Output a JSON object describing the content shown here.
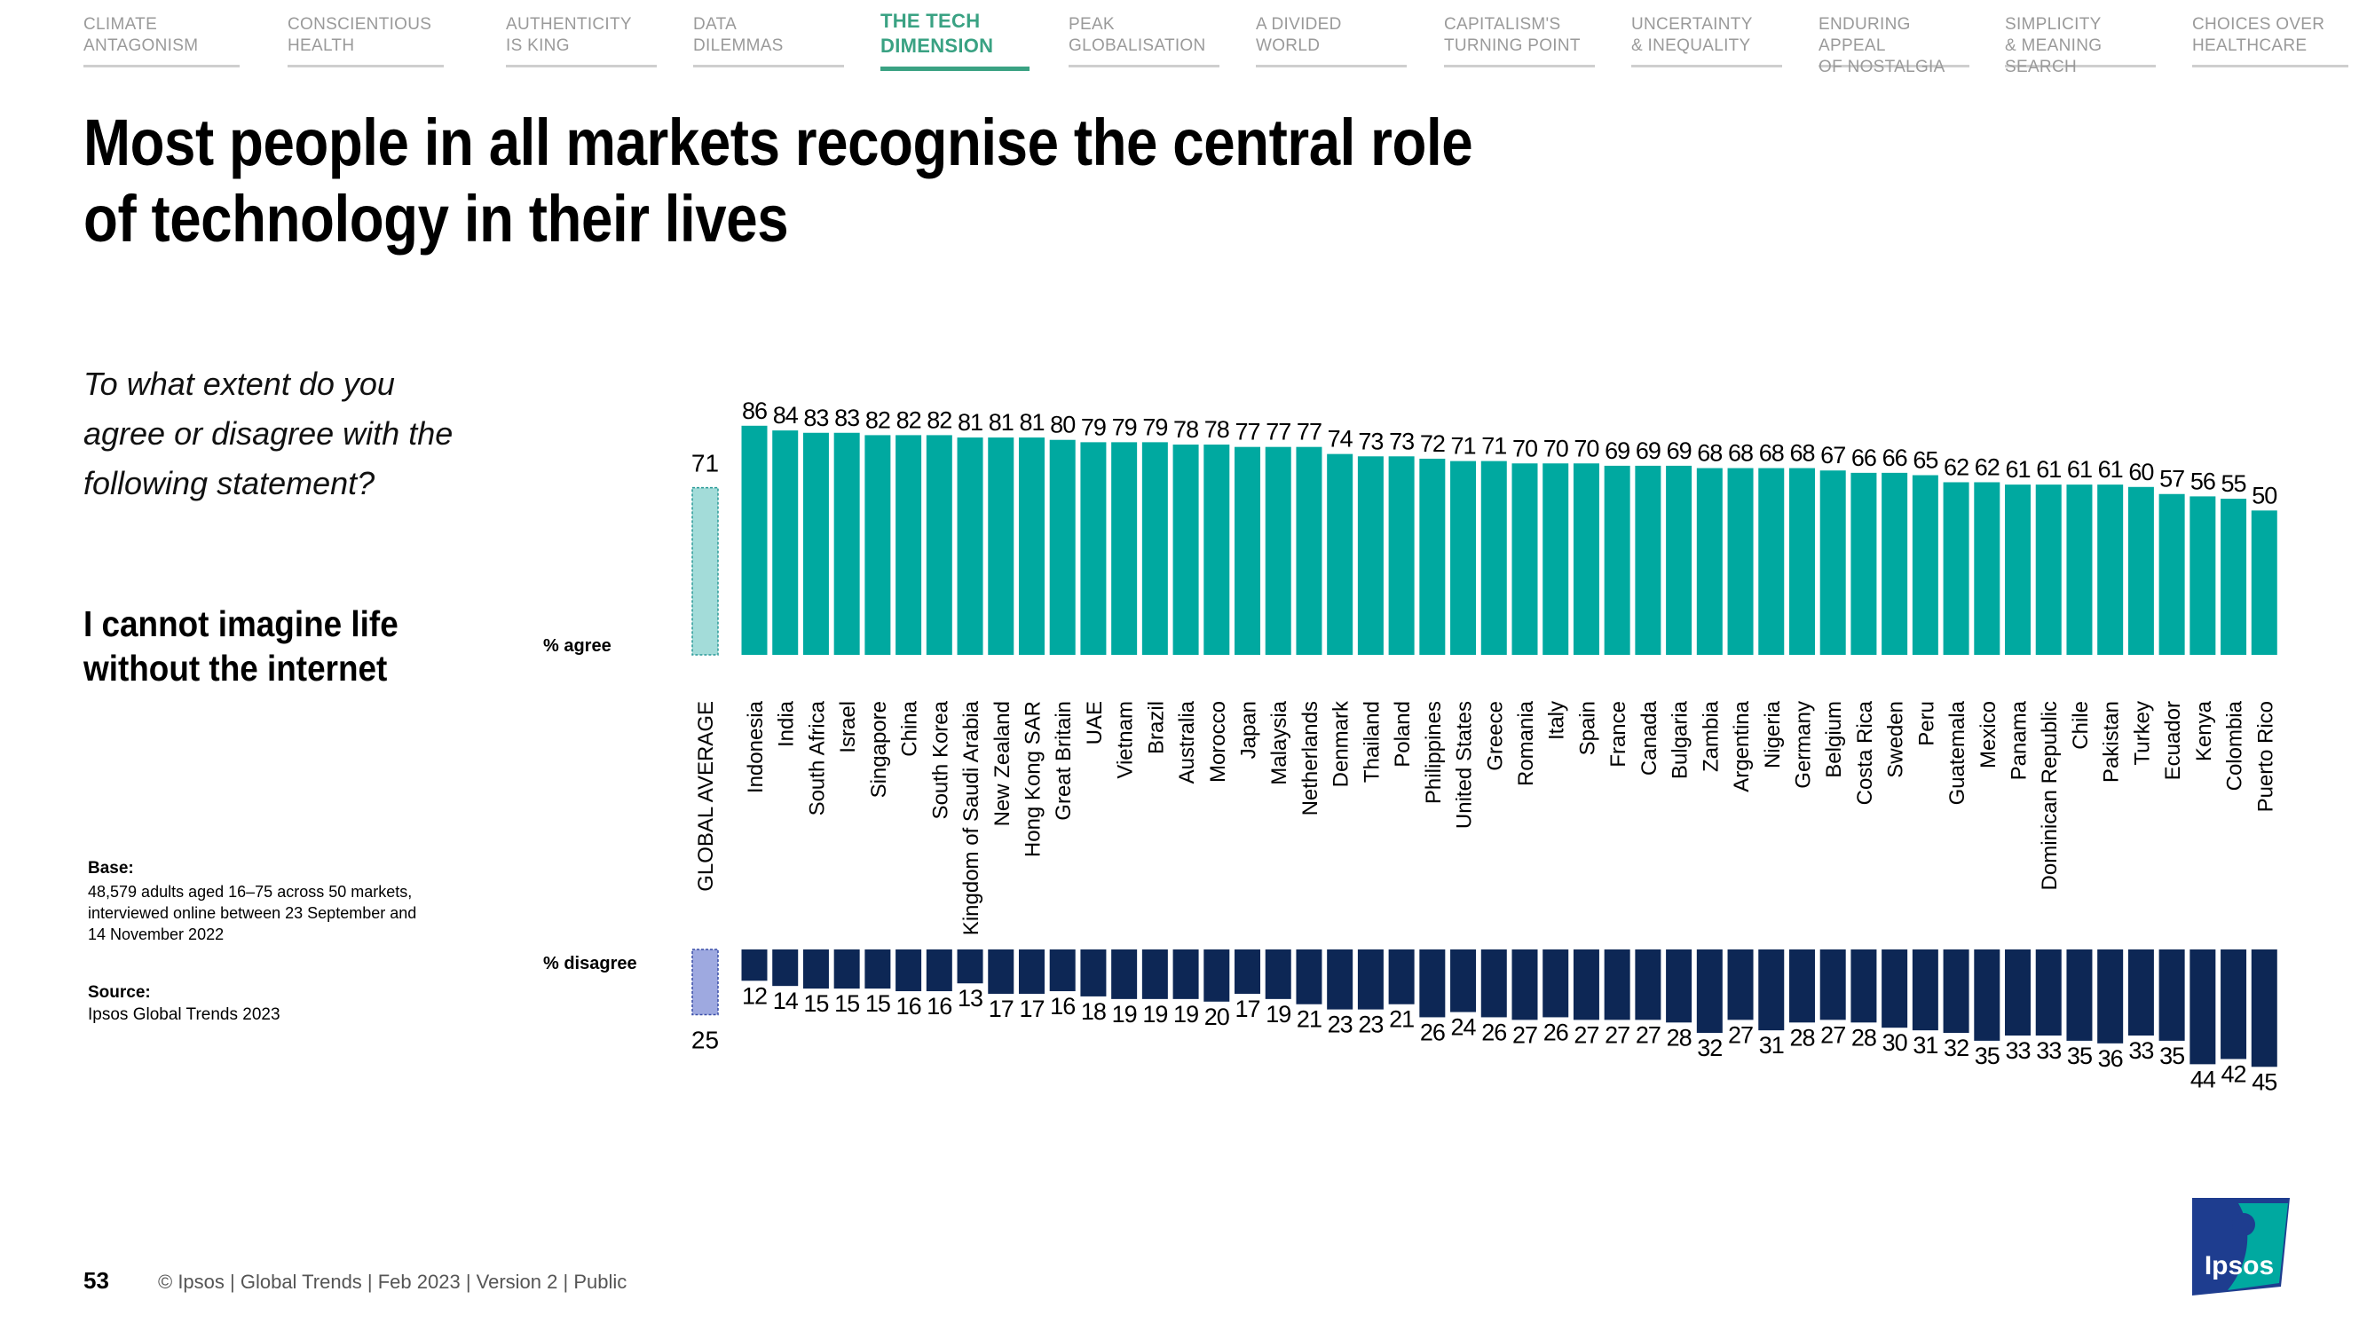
{
  "nav": [
    {
      "line1": "CLIMATE",
      "line2": "ANTAGONISM"
    },
    {
      "line1": "CONSCIENTIOUS",
      "line2": "HEALTH"
    },
    {
      "line1": "AUTHENTICITY",
      "line2": "IS KING"
    },
    {
      "line1": "DATA",
      "line2": "DILEMMAS"
    },
    {
      "line1": "THE TECH",
      "line2": "DIMENSION"
    },
    {
      "line1": "PEAK",
      "line2": "GLOBALISATION"
    },
    {
      "line1": "A DIVIDED",
      "line2": "WORLD"
    },
    {
      "line1": "CAPITALISM'S",
      "line2": "TURNING POINT"
    },
    {
      "line1": "UNCERTAINTY",
      "line2": "& INEQUALITY"
    },
    {
      "line1": "ENDURING APPEAL",
      "line2": "OF NOSTALGIA"
    },
    {
      "line1": "SIMPLICITY",
      "line2": "& MEANING SEARCH"
    },
    {
      "line1": "CHOICES OVER",
      "line2": "HEALTHCARE"
    }
  ],
  "title": "Most people in all markets recognise the central role of technology in their lives",
  "question": "To what extent do you agree or disagree with the following statement?",
  "statement": "I cannot imagine life without the internet",
  "base_label": "Base:",
  "base_text": "48,579 adults aged 16–75 across 50 markets, interviewed online between 23 September and 14 November 2022",
  "source_label": "Source:",
  "source_text": "Ipsos Global Trends 2023",
  "footer_page": "53",
  "footer_text": "© Ipsos | Global Trends | Feb 2023 | Version 2 | Public",
  "logo_text": "Ipsos",
  "colors": {
    "agree": "#00a9a0",
    "disagree": "#0d2755",
    "avg_agree": "#a3dcd9",
    "avg_disagree": "#9ea9e0",
    "active": "#3aa283"
  },
  "chart_data": {
    "type": "bar",
    "agree_label": "% agree",
    "disagree_label": "% disagree",
    "global_average_label": "GLOBAL AVERAGE",
    "global_average": {
      "agree": 71,
      "disagree": 25
    },
    "categories": [
      "Indonesia",
      "India",
      "South Africa",
      "Israel",
      "Singapore",
      "China",
      "South Korea",
      "Kingdom of Saudi Arabia",
      "New Zealand",
      "Hong Kong SAR",
      "Great Britain",
      "UAE",
      "Vietnam",
      "Brazil",
      "Australia",
      "Morocco",
      "Japan",
      "Malaysia",
      "Netherlands",
      "Denmark",
      "Thailand",
      "Poland",
      "Philippines",
      "United States",
      "Greece",
      "Romania",
      "Italy",
      "Spain",
      "France",
      "Canada",
      "Bulgaria",
      "Zambia",
      "Argentina",
      "Nigeria",
      "Germany",
      "Belgium",
      "Costa Rica",
      "Sweden",
      "Peru",
      "Guatemala",
      "Mexico",
      "Panama",
      "Dominican Republic",
      "Chile",
      "Pakistan",
      "Turkey",
      "Ecuador",
      "Kenya",
      "Colombia",
      "Puerto Rico"
    ],
    "series": [
      {
        "name": "% agree",
        "values": [
          86,
          84,
          83,
          83,
          82,
          82,
          82,
          81,
          81,
          81,
          80,
          79,
          79,
          79,
          78,
          78,
          77,
          77,
          77,
          74,
          73,
          73,
          72,
          71,
          71,
          70,
          70,
          70,
          69,
          69,
          69,
          68,
          68,
          68,
          68,
          67,
          66,
          66,
          65,
          62,
          62,
          61,
          61,
          61,
          61,
          60,
          57,
          56,
          55,
          50
        ]
      },
      {
        "name": "% disagree",
        "values": [
          12,
          14,
          15,
          15,
          15,
          16,
          16,
          13,
          17,
          17,
          16,
          18,
          19,
          19,
          19,
          20,
          17,
          19,
          21,
          23,
          23,
          21,
          26,
          24,
          26,
          27,
          26,
          27,
          27,
          27,
          28,
          32,
          27,
          31,
          28,
          27,
          28,
          30,
          31,
          32,
          35,
          33,
          33,
          35,
          36,
          33,
          35,
          44,
          42,
          45
        ]
      }
    ]
  }
}
